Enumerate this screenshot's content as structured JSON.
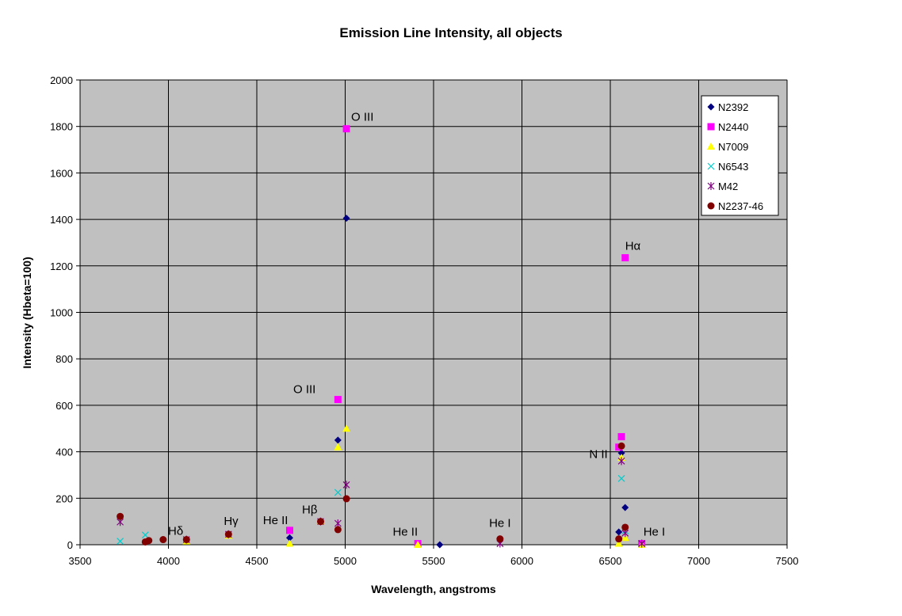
{
  "chart_data": {
    "type": "scatter",
    "title": "Emission Line Intensity, all objects",
    "xlabel": "Wavelength, angstroms",
    "ylabel": "Intensity (Hbeta=100)",
    "xlim": [
      3500,
      7500
    ],
    "ylim": [
      0,
      2000
    ],
    "xticks": [
      3500,
      4000,
      4500,
      5000,
      5500,
      6000,
      6500,
      7000,
      7500
    ],
    "yticks": [
      0,
      200,
      400,
      600,
      800,
      1000,
      1200,
      1400,
      1600,
      1800,
      2000
    ],
    "grid": true,
    "plot_background": "#c0c0c0",
    "legend_position": "top-right",
    "series": [
      {
        "name": "N2392",
        "marker": "diamond",
        "color": "#000080",
        "points": [
          [
            4686,
            30
          ],
          [
            4959,
            450
          ],
          [
            5007,
            1405
          ],
          [
            5535,
            0
          ],
          [
            6548,
            55
          ],
          [
            6563,
            395
          ],
          [
            6584,
            160
          ]
        ]
      },
      {
        "name": "N2440",
        "marker": "square",
        "color": "#ff00ff",
        "points": [
          [
            4686,
            62
          ],
          [
            4959,
            625
          ],
          [
            5007,
            1790
          ],
          [
            5411,
            5
          ],
          [
            6548,
            420
          ],
          [
            6563,
            465
          ],
          [
            6584,
            1235
          ],
          [
            6678,
            5
          ]
        ]
      },
      {
        "name": "N7009",
        "marker": "triangle",
        "color": "#ffff00",
        "points": [
          [
            4102,
            15
          ],
          [
            4340,
            40
          ],
          [
            4686,
            5
          ],
          [
            4861,
            100
          ],
          [
            4959,
            420
          ],
          [
            5007,
            500
          ],
          [
            5411,
            0
          ],
          [
            6548,
            5
          ],
          [
            6563,
            375
          ],
          [
            6584,
            30
          ],
          [
            6678,
            0
          ]
        ]
      },
      {
        "name": "N6543",
        "marker": "x",
        "color": "#00cccc",
        "points": [
          [
            3727,
            15
          ],
          [
            3869,
            42
          ],
          [
            4959,
            225
          ],
          [
            6563,
            285
          ],
          [
            6584,
            60
          ]
        ]
      },
      {
        "name": "M42",
        "marker": "star",
        "color": "#800080",
        "points": [
          [
            3727,
            98
          ],
          [
            4102,
            22
          ],
          [
            4340,
            45
          ],
          [
            4861,
            100
          ],
          [
            4959,
            92
          ],
          [
            5007,
            258
          ],
          [
            5876,
            5
          ],
          [
            6563,
            360
          ],
          [
            6584,
            50
          ],
          [
            6678,
            5
          ]
        ]
      },
      {
        "name": "N2237-46",
        "marker": "circle",
        "color": "#800000",
        "points": [
          [
            3727,
            122
          ],
          [
            3869,
            12
          ],
          [
            3889,
            18
          ],
          [
            3970,
            22
          ],
          [
            4102,
            22
          ],
          [
            4340,
            45
          ],
          [
            4861,
            100
          ],
          [
            4959,
            65
          ],
          [
            5007,
            198
          ],
          [
            5876,
            25
          ],
          [
            6548,
            25
          ],
          [
            6563,
            425
          ],
          [
            6584,
            75
          ]
        ]
      }
    ],
    "annotations": [
      {
        "text": "O III",
        "x": 5007,
        "y": 1790
      },
      {
        "text": "Hα",
        "x": 6584,
        "y": 1235
      },
      {
        "text": "O III",
        "x": 4959,
        "y": 625
      },
      {
        "text": "N II",
        "x": 6548,
        "y": 420
      },
      {
        "text": "Hβ",
        "x": 4861,
        "y": 100
      },
      {
        "text": "He II",
        "x": 4686,
        "y": 62
      },
      {
        "text": "Hδ",
        "x": 4102,
        "y": 22
      },
      {
        "text": "Hγ",
        "x": 4340,
        "y": 45
      },
      {
        "text": "He II",
        "x": 5411,
        "y": 5
      },
      {
        "text": "He I",
        "x": 5876,
        "y": 25
      },
      {
        "text": "He I",
        "x": 6678,
        "y": 5
      }
    ]
  }
}
